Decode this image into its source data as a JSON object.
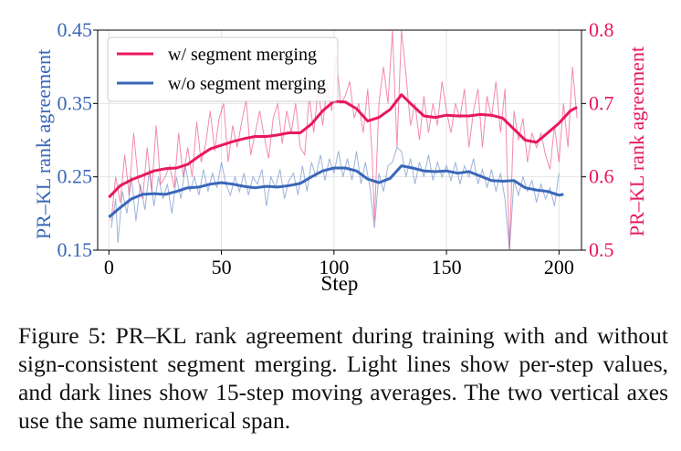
{
  "caption": "Figure 5: PR–KL rank agreement during training with and without sign-consistent segment merging. Light lines show per-step values, and dark lines show 15-step moving averages. The two vertical axes use the same numerical span.",
  "colors": {
    "left_axis": "#3a67b8",
    "right_axis": "#e8185c",
    "grid": "#e4e4e4"
  },
  "chart_data": {
    "type": "line",
    "title": "",
    "xlabel": "Step",
    "ylabel_left": "PR–KL rank agreement",
    "ylabel_right": "PR–KL rank agreement",
    "xlim": [
      -5,
      210
    ],
    "ylim_left": [
      0.15,
      0.45
    ],
    "ylim_right": [
      0.5,
      0.8
    ],
    "xticks": [
      0,
      50,
      100,
      150,
      200
    ],
    "yticks_left": [
      0.15,
      0.25,
      0.35,
      0.45
    ],
    "yticks_left_labels": [
      "0.15",
      "0.25",
      "0.35",
      "0.45"
    ],
    "yticks_right": [
      0.5,
      0.6,
      0.7,
      0.8
    ],
    "yticks_right_labels": [
      "0.5",
      "0.6",
      "0.7",
      "0.8"
    ],
    "grid": true,
    "legend": "top-left",
    "series": [
      {
        "name": "w/ segment merging",
        "axis": "right",
        "color": "#e8185c",
        "moving_average": [
          [
            0,
            0.572
          ],
          [
            5,
            0.588
          ],
          [
            10,
            0.596
          ],
          [
            15,
            0.602
          ],
          [
            20,
            0.608
          ],
          [
            25,
            0.611
          ],
          [
            30,
            0.612
          ],
          [
            35,
            0.617
          ],
          [
            40,
            0.628
          ],
          [
            45,
            0.638
          ],
          [
            50,
            0.643
          ],
          [
            55,
            0.648
          ],
          [
            60,
            0.652
          ],
          [
            65,
            0.655
          ],
          [
            70,
            0.655
          ],
          [
            75,
            0.657
          ],
          [
            80,
            0.66
          ],
          [
            85,
            0.66
          ],
          [
            90,
            0.672
          ],
          [
            95,
            0.69
          ],
          [
            100,
            0.703
          ],
          [
            105,
            0.702
          ],
          [
            110,
            0.693
          ],
          [
            115,
            0.676
          ],
          [
            120,
            0.681
          ],
          [
            125,
            0.692
          ],
          [
            130,
            0.712
          ],
          [
            135,
            0.697
          ],
          [
            140,
            0.683
          ],
          [
            145,
            0.681
          ],
          [
            150,
            0.684
          ],
          [
            155,
            0.683
          ],
          [
            160,
            0.683
          ],
          [
            165,
            0.685
          ],
          [
            170,
            0.684
          ],
          [
            175,
            0.68
          ],
          [
            180,
            0.665
          ],
          [
            185,
            0.65
          ],
          [
            190,
            0.647
          ],
          [
            195,
            0.66
          ],
          [
            200,
            0.673
          ],
          [
            205,
            0.69
          ],
          [
            208,
            0.695
          ]
        ],
        "per_step": [
          [
            1,
            0.54
          ],
          [
            3,
            0.6
          ],
          [
            5,
            0.565
          ],
          [
            7,
            0.63
          ],
          [
            9,
            0.575
          ],
          [
            11,
            0.66
          ],
          [
            13,
            0.595
          ],
          [
            15,
            0.57
          ],
          [
            17,
            0.64
          ],
          [
            19,
            0.58
          ],
          [
            21,
            0.67
          ],
          [
            23,
            0.59
          ],
          [
            25,
            0.6
          ],
          [
            27,
            0.615
          ],
          [
            29,
            0.585
          ],
          [
            31,
            0.66
          ],
          [
            33,
            0.6
          ],
          [
            35,
            0.64
          ],
          [
            37,
            0.6
          ],
          [
            39,
            0.675
          ],
          [
            41,
            0.62
          ],
          [
            43,
            0.645
          ],
          [
            45,
            0.69
          ],
          [
            47,
            0.635
          ],
          [
            49,
            0.68
          ],
          [
            51,
            0.7
          ],
          [
            53,
            0.62
          ],
          [
            55,
            0.67
          ],
          [
            57,
            0.64
          ],
          [
            59,
            0.675
          ],
          [
            61,
            0.705
          ],
          [
            63,
            0.63
          ],
          [
            65,
            0.66
          ],
          [
            67,
            0.69
          ],
          [
            69,
            0.655
          ],
          [
            71,
            0.625
          ],
          [
            73,
            0.68
          ],
          [
            75,
            0.7
          ],
          [
            77,
            0.645
          ],
          [
            79,
            0.69
          ],
          [
            81,
            0.66
          ],
          [
            83,
            0.7
          ],
          [
            85,
            0.64
          ],
          [
            87,
            0.63
          ],
          [
            89,
            0.71
          ],
          [
            91,
            0.66
          ],
          [
            93,
            0.72
          ],
          [
            95,
            0.67
          ],
          [
            97,
            0.725
          ],
          [
            99,
            0.69
          ],
          [
            101,
            0.765
          ],
          [
            103,
            0.7
          ],
          [
            105,
            0.71
          ],
          [
            107,
            0.73
          ],
          [
            109,
            0.68
          ],
          [
            111,
            0.7
          ],
          [
            113,
            0.66
          ],
          [
            115,
            0.72
          ],
          [
            117,
            0.63
          ],
          [
            118,
            0.54
          ],
          [
            120,
            0.7
          ],
          [
            122,
            0.75
          ],
          [
            124,
            0.7
          ],
          [
            126,
            0.8
          ],
          [
            128,
            0.64
          ],
          [
            130,
            0.8
          ],
          [
            132,
            0.74
          ],
          [
            134,
            0.67
          ],
          [
            136,
            0.7
          ],
          [
            138,
            0.65
          ],
          [
            140,
            0.71
          ],
          [
            142,
            0.66
          ],
          [
            144,
            0.7
          ],
          [
            146,
            0.67
          ],
          [
            148,
            0.73
          ],
          [
            150,
            0.69
          ],
          [
            152,
            0.66
          ],
          [
            154,
            0.7
          ],
          [
            156,
            0.68
          ],
          [
            158,
            0.72
          ],
          [
            160,
            0.64
          ],
          [
            162,
            0.69
          ],
          [
            164,
            0.72
          ],
          [
            166,
            0.64
          ],
          [
            168,
            0.71
          ],
          [
            170,
            0.68
          ],
          [
            172,
            0.73
          ],
          [
            174,
            0.66
          ],
          [
            176,
            0.72
          ],
          [
            178,
            0.5
          ],
          [
            180,
            0.69
          ],
          [
            182,
            0.65
          ],
          [
            184,
            0.68
          ],
          [
            186,
            0.62
          ],
          [
            188,
            0.66
          ],
          [
            190,
            0.64
          ],
          [
            192,
            0.66
          ],
          [
            194,
            0.63
          ],
          [
            196,
            0.61
          ],
          [
            198,
            0.67
          ],
          [
            200,
            0.62
          ],
          [
            202,
            0.7
          ],
          [
            204,
            0.64
          ],
          [
            206,
            0.75
          ],
          [
            208,
            0.68
          ]
        ]
      },
      {
        "name": "w/o segment merging",
        "axis": "left",
        "color": "#3a67b8",
        "moving_average": [
          [
            0,
            0.195
          ],
          [
            5,
            0.208
          ],
          [
            10,
            0.22
          ],
          [
            15,
            0.226
          ],
          [
            20,
            0.227
          ],
          [
            25,
            0.226
          ],
          [
            30,
            0.23
          ],
          [
            35,
            0.235
          ],
          [
            40,
            0.236
          ],
          [
            45,
            0.24
          ],
          [
            50,
            0.242
          ],
          [
            55,
            0.24
          ],
          [
            60,
            0.237
          ],
          [
            65,
            0.235
          ],
          [
            70,
            0.237
          ],
          [
            75,
            0.236
          ],
          [
            80,
            0.238
          ],
          [
            85,
            0.241
          ],
          [
            90,
            0.25
          ],
          [
            95,
            0.258
          ],
          [
            100,
            0.262
          ],
          [
            105,
            0.262
          ],
          [
            110,
            0.258
          ],
          [
            115,
            0.247
          ],
          [
            120,
            0.242
          ],
          [
            125,
            0.248
          ],
          [
            130,
            0.265
          ],
          [
            135,
            0.262
          ],
          [
            140,
            0.258
          ],
          [
            145,
            0.257
          ],
          [
            150,
            0.258
          ],
          [
            155,
            0.255
          ],
          [
            160,
            0.257
          ],
          [
            165,
            0.251
          ],
          [
            170,
            0.245
          ],
          [
            175,
            0.244
          ],
          [
            180,
            0.245
          ],
          [
            185,
            0.235
          ],
          [
            190,
            0.232
          ],
          [
            195,
            0.23
          ],
          [
            200,
            0.225
          ],
          [
            202,
            0.226
          ]
        ],
        "per_step": [
          [
            1,
            0.18
          ],
          [
            3,
            0.22
          ],
          [
            4,
            0.16
          ],
          [
            6,
            0.23
          ],
          [
            8,
            0.2
          ],
          [
            10,
            0.25
          ],
          [
            12,
            0.19
          ],
          [
            14,
            0.24
          ],
          [
            16,
            0.205
          ],
          [
            18,
            0.26
          ],
          [
            20,
            0.21
          ],
          [
            22,
            0.25
          ],
          [
            24,
            0.22
          ],
          [
            26,
            0.24
          ],
          [
            28,
            0.2
          ],
          [
            30,
            0.25
          ],
          [
            32,
            0.22
          ],
          [
            34,
            0.265
          ],
          [
            36,
            0.23
          ],
          [
            38,
            0.25
          ],
          [
            40,
            0.225
          ],
          [
            42,
            0.26
          ],
          [
            44,
            0.23
          ],
          [
            46,
            0.255
          ],
          [
            48,
            0.235
          ],
          [
            50,
            0.27
          ],
          [
            52,
            0.24
          ],
          [
            54,
            0.225
          ],
          [
            56,
            0.25
          ],
          [
            58,
            0.23
          ],
          [
            60,
            0.255
          ],
          [
            62,
            0.225
          ],
          [
            64,
            0.25
          ],
          [
            66,
            0.24
          ],
          [
            68,
            0.26
          ],
          [
            70,
            0.21
          ],
          [
            72,
            0.25
          ],
          [
            74,
            0.235
          ],
          [
            76,
            0.26
          ],
          [
            78,
            0.22
          ],
          [
            80,
            0.245
          ],
          [
            82,
            0.255
          ],
          [
            84,
            0.225
          ],
          [
            86,
            0.265
          ],
          [
            88,
            0.23
          ],
          [
            90,
            0.27
          ],
          [
            92,
            0.25
          ],
          [
            94,
            0.28
          ],
          [
            96,
            0.245
          ],
          [
            98,
            0.275
          ],
          [
            100,
            0.255
          ],
          [
            102,
            0.285
          ],
          [
            104,
            0.25
          ],
          [
            106,
            0.275
          ],
          [
            108,
            0.245
          ],
          [
            110,
            0.285
          ],
          [
            112,
            0.24
          ],
          [
            114,
            0.27
          ],
          [
            116,
            0.235
          ],
          [
            118,
            0.18
          ],
          [
            120,
            0.255
          ],
          [
            122,
            0.23
          ],
          [
            124,
            0.265
          ],
          [
            126,
            0.27
          ],
          [
            128,
            0.29
          ],
          [
            130,
            0.285
          ],
          [
            132,
            0.25
          ],
          [
            134,
            0.275
          ],
          [
            136,
            0.24
          ],
          [
            138,
            0.27
          ],
          [
            140,
            0.25
          ],
          [
            142,
            0.28
          ],
          [
            144,
            0.245
          ],
          [
            146,
            0.27
          ],
          [
            148,
            0.25
          ],
          [
            150,
            0.265
          ],
          [
            152,
            0.245
          ],
          [
            154,
            0.27
          ],
          [
            156,
            0.24
          ],
          [
            158,
            0.265
          ],
          [
            160,
            0.25
          ],
          [
            162,
            0.275
          ],
          [
            164,
            0.24
          ],
          [
            166,
            0.26
          ],
          [
            168,
            0.235
          ],
          [
            170,
            0.26
          ],
          [
            172,
            0.23
          ],
          [
            174,
            0.255
          ],
          [
            176,
            0.22
          ],
          [
            178,
            0.15
          ],
          [
            180,
            0.245
          ],
          [
            182,
            0.225
          ],
          [
            184,
            0.25
          ],
          [
            186,
            0.23
          ],
          [
            188,
            0.245
          ],
          [
            190,
            0.215
          ],
          [
            192,
            0.24
          ],
          [
            194,
            0.22
          ],
          [
            196,
            0.235
          ],
          [
            198,
            0.21
          ],
          [
            200,
            0.255
          ]
        ]
      }
    ]
  }
}
